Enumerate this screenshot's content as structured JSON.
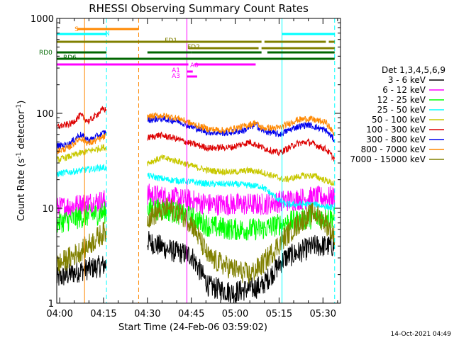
{
  "chart_data": {
    "type": "line",
    "title": "RHESSI Observing Summary Count Rates",
    "xlabel": "Start Time (24-Feb-06 03:59:02)",
    "ylabel": "Count Rate (s",
    "ylabel_sup1": "-1",
    "ylabel_mid": " detector",
    "ylabel_sup2": "-1",
    "ylabel_end": ")",
    "footer": "14-Oct-2021 04:49",
    "yscale": "log",
    "ylim": [
      1,
      1000
    ],
    "xlim_minutes": [
      0,
      97
    ],
    "x_ticks": [
      {
        "label": "04:00",
        "min": 1
      },
      {
        "label": "04:15",
        "min": 16
      },
      {
        "label": "04:30",
        "min": 31
      },
      {
        "label": "04:45",
        "min": 46
      },
      {
        "label": "05:00",
        "min": 61
      },
      {
        "label": "05:15",
        "min": 76
      },
      {
        "label": "05:30",
        "min": 91
      }
    ],
    "y_ticks": [
      {
        "label": "1",
        "v": 1
      },
      {
        "label": "10",
        "v": 10
      },
      {
        "label": "100",
        "v": 100
      },
      {
        "label": "1000",
        "v": 1000
      }
    ],
    "legend": {
      "title": "Det 1,3,4,5,6,9",
      "entries": [
        {
          "label": "3 - 6 keV",
          "color": "#000000"
        },
        {
          "label": "6 - 12 keV",
          "color": "#ff00ff"
        },
        {
          "label": "12 - 25 keV",
          "color": "#00ff00"
        },
        {
          "label": "25 - 50 keV",
          "color": "#00ffff"
        },
        {
          "label": "50 - 100 keV",
          "color": "#c8c800"
        },
        {
          "label": "100 - 300 keV",
          "color": "#dd0000"
        },
        {
          "label": "300 - 800 keV",
          "color": "#0000ee"
        },
        {
          "label": "800 - 7000 keV",
          "color": "#ff8800"
        },
        {
          "label": "7000 - 15000 keV",
          "color": "#808000"
        }
      ]
    },
    "data_intervals": [
      [
        0,
        17
      ],
      [
        31,
        70
      ],
      [
        70,
        95
      ]
    ],
    "series": [
      {
        "name": "3 - 6 keV",
        "color": "#000000",
        "points": [
          [
            0,
            1.8
          ],
          [
            8,
            2.2
          ],
          [
            16,
            2.5
          ],
          [
            31,
            4.5
          ],
          [
            40,
            3.5
          ],
          [
            46,
            3.2
          ],
          [
            52,
            1.5
          ],
          [
            60,
            1.3
          ],
          [
            70,
            1.5
          ],
          [
            78,
            3
          ],
          [
            88,
            4
          ],
          [
            95,
            4
          ]
        ]
      },
      {
        "name": "6 - 12 keV",
        "color": "#ff00ff",
        "points": [
          [
            0,
            10
          ],
          [
            8,
            11
          ],
          [
            16,
            12
          ],
          [
            31,
            14
          ],
          [
            38,
            13
          ],
          [
            46,
            12
          ],
          [
            52,
            11
          ],
          [
            60,
            11
          ],
          [
            70,
            11
          ],
          [
            78,
            12
          ],
          [
            88,
            13
          ],
          [
            95,
            13
          ]
        ]
      },
      {
        "name": "12 - 25 keV",
        "color": "#00ff00",
        "points": [
          [
            0,
            7
          ],
          [
            8,
            8
          ],
          [
            16,
            9
          ],
          [
            31,
            10
          ],
          [
            38,
            9.5
          ],
          [
            46,
            8
          ],
          [
            52,
            6.5
          ],
          [
            60,
            6
          ],
          [
            70,
            6
          ],
          [
            78,
            7
          ],
          [
            88,
            8
          ],
          [
            95,
            8
          ]
        ]
      },
      {
        "name": "25 - 50 keV",
        "color": "#00ffff",
        "points": [
          [
            0,
            23
          ],
          [
            8,
            25
          ],
          [
            16,
            27
          ],
          [
            31,
            22
          ],
          [
            38,
            20
          ],
          [
            46,
            19
          ],
          [
            52,
            18
          ],
          [
            60,
            18
          ],
          [
            70,
            17
          ],
          [
            78,
            11
          ],
          [
            88,
            11
          ],
          [
            95,
            10
          ]
        ]
      },
      {
        "name": "50 - 100 keV",
        "color": "#c8c800",
        "points": [
          [
            0,
            32
          ],
          [
            8,
            38
          ],
          [
            16,
            44
          ],
          [
            31,
            30
          ],
          [
            36,
            34
          ],
          [
            42,
            31
          ],
          [
            46,
            28
          ],
          [
            52,
            25
          ],
          [
            60,
            24
          ],
          [
            66,
            25
          ],
          [
            70,
            24
          ],
          [
            78,
            20
          ],
          [
            84,
            22
          ],
          [
            88,
            22
          ],
          [
            95,
            18
          ]
        ]
      },
      {
        "name": "100 - 300 keV",
        "color": "#dd0000",
        "points": [
          [
            0,
            72
          ],
          [
            5,
            78
          ],
          [
            8,
            95
          ],
          [
            11,
            82
          ],
          [
            16,
            112
          ],
          [
            31,
            55
          ],
          [
            35,
            59
          ],
          [
            40,
            55
          ],
          [
            46,
            48
          ],
          [
            52,
            43
          ],
          [
            60,
            44
          ],
          [
            66,
            50
          ],
          [
            70,
            44
          ],
          [
            76,
            38
          ],
          [
            82,
            48
          ],
          [
            86,
            50
          ],
          [
            92,
            42
          ],
          [
            95,
            33
          ]
        ]
      },
      {
        "name": "300 - 800 keV",
        "color": "#0000ee",
        "points": [
          [
            0,
            45
          ],
          [
            4,
            47
          ],
          [
            8,
            60
          ],
          [
            11,
            52
          ],
          [
            16,
            62
          ],
          [
            31,
            85
          ],
          [
            36,
            88
          ],
          [
            42,
            82
          ],
          [
            46,
            72
          ],
          [
            52,
            63
          ],
          [
            58,
            62
          ],
          [
            64,
            66
          ],
          [
            68,
            76
          ],
          [
            70,
            66
          ],
          [
            76,
            60
          ],
          [
            82,
            72
          ],
          [
            86,
            76
          ],
          [
            92,
            66
          ],
          [
            95,
            52
          ]
        ]
      },
      {
        "name": "800 - 7000 keV",
        "color": "#ff8800",
        "points": [
          [
            0,
            40
          ],
          [
            4,
            43
          ],
          [
            8,
            55
          ],
          [
            11,
            48
          ],
          [
            16,
            56
          ],
          [
            31,
            92
          ],
          [
            36,
            95
          ],
          [
            42,
            88
          ],
          [
            46,
            78
          ],
          [
            52,
            68
          ],
          [
            58,
            66
          ],
          [
            64,
            73
          ],
          [
            68,
            80
          ],
          [
            70,
            70
          ],
          [
            76,
            70
          ],
          [
            82,
            85
          ],
          [
            86,
            88
          ],
          [
            92,
            80
          ],
          [
            95,
            60
          ]
        ]
      },
      {
        "name": "7000 - 15000 keV",
        "color": "#808000",
        "points": [
          [
            0,
            2.5
          ],
          [
            8,
            3.5
          ],
          [
            16,
            5.5
          ],
          [
            31,
            8
          ],
          [
            38,
            10
          ],
          [
            42,
            9
          ],
          [
            46,
            7
          ],
          [
            52,
            3
          ],
          [
            60,
            2.3
          ],
          [
            66,
            2
          ],
          [
            70,
            2.5
          ],
          [
            78,
            5
          ],
          [
            84,
            7.5
          ],
          [
            88,
            9
          ],
          [
            92,
            7
          ],
          [
            95,
            5
          ]
        ]
      }
    ],
    "state_bars": [
      {
        "label": "S",
        "color": "#ff8800",
        "segments": [
          [
            7,
            28
          ]
        ],
        "row": "saa"
      },
      {
        "label": "N",
        "color": "#00ffff",
        "segments": [
          [
            0,
            17
          ],
          [
            77,
            95
          ]
        ],
        "row": "night"
      },
      {
        "label": "FD1",
        "color": "#808000",
        "segments": [
          [
            0,
            70
          ],
          [
            71,
            92
          ],
          [
            93,
            95
          ]
        ],
        "row": "fd1"
      },
      {
        "label": "FD2",
        "color": "#808000",
        "segments": [
          [
            45,
            69
          ],
          [
            70,
            95
          ]
        ],
        "row": "fd2"
      },
      {
        "label": "RD0",
        "color": "#006600",
        "segments": [
          [
            0,
            17
          ],
          [
            31,
            46
          ],
          [
            46,
            70
          ],
          [
            72,
            95
          ]
        ],
        "row": "rd0"
      },
      {
        "label": "RD6",
        "color": "#006600",
        "segments": [
          [
            0,
            95
          ]
        ],
        "row": "rd6"
      },
      {
        "label": "A0",
        "color": "#ff00ff",
        "segments": [
          [
            0,
            45
          ],
          [
            47,
            68
          ]
        ],
        "row": "a0"
      },
      {
        "label": "A1",
        "color": "#ff00ff",
        "segments": [
          [
            44.5,
            46.5
          ]
        ],
        "row": "a1"
      },
      {
        "label": "A3",
        "color": "#ff00ff",
        "segments": [
          [
            44.5,
            48
          ]
        ],
        "row": "a3"
      }
    ],
    "vlines": [
      {
        "min": 0,
        "color": "#00ffff",
        "style": "solid"
      },
      {
        "min": 17,
        "color": "#00ffff",
        "style": "dashed"
      },
      {
        "min": 28,
        "color": "#ff8800",
        "style": "dashed"
      },
      {
        "min": 77,
        "color": "#00ffff",
        "style": "solid"
      },
      {
        "min": 95,
        "color": "#00ffff",
        "style": "dashed"
      },
      {
        "min": 9.5,
        "color": "#ff8800",
        "style": "solid"
      },
      {
        "min": 44.5,
        "color": "#ff00ff",
        "style": "solid"
      }
    ]
  }
}
